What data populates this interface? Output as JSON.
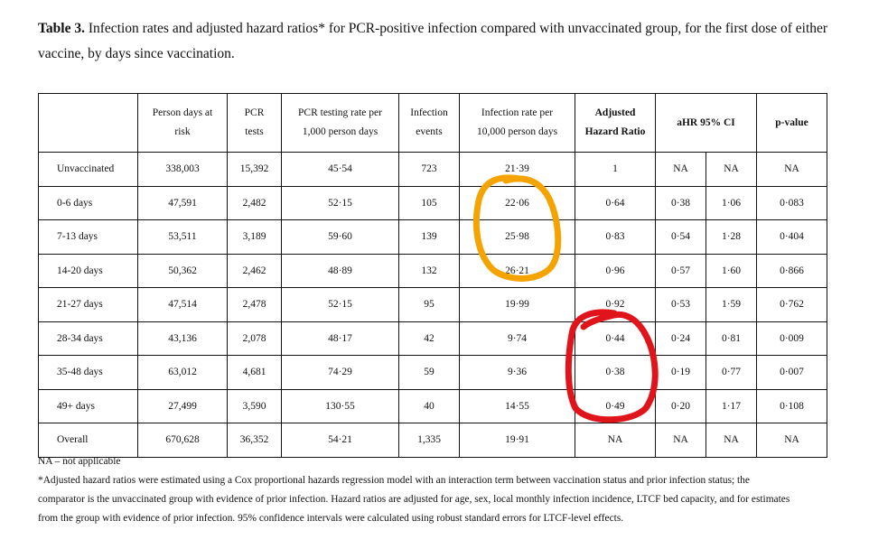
{
  "caption": {
    "label": "Table 3.",
    "text": " Infection rates and adjusted hazard ratios* for PCR-positive infection compared with unvaccinated group, for the first dose of either vaccine, by days since vaccination."
  },
  "table": {
    "headers": {
      "group": "",
      "person_days_l1": "Person days at",
      "person_days_l2": "risk",
      "pcr_tests_l1": "PCR",
      "pcr_tests_l2": "tests",
      "pcr_rate_l1": "PCR testing rate per",
      "pcr_rate_l2": "1,000 person days",
      "events_l1": "Infection",
      "events_l2": "events",
      "inf_rate_l1": "Infection rate per",
      "inf_rate_l2": "10,000 person days",
      "ahr_l1": "Adjusted",
      "ahr_l2": "Hazard Ratio",
      "ci": "aHR 95% CI",
      "pvalue": "p-value"
    },
    "rows": [
      {
        "group": "Unvaccinated",
        "person_days": "338,003",
        "pcr_tests": "15,392",
        "pcr_rate": "45·54",
        "events": "723",
        "inf_rate": "21·39",
        "ahr": "1",
        "ci_low": "NA",
        "ci_high": "NA",
        "p": "NA"
      },
      {
        "group": "0-6 days",
        "person_days": "47,591",
        "pcr_tests": "2,482",
        "pcr_rate": "52·15",
        "events": "105",
        "inf_rate": "22·06",
        "ahr": "0·64",
        "ci_low": "0·38",
        "ci_high": "1·06",
        "p": "0·083"
      },
      {
        "group": "7-13 days",
        "person_days": "53,511",
        "pcr_tests": "3,189",
        "pcr_rate": "59·60",
        "events": "139",
        "inf_rate": "25·98",
        "ahr": "0·83",
        "ci_low": "0·54",
        "ci_high": "1·28",
        "p": "0·404"
      },
      {
        "group": "14-20 days",
        "person_days": "50,362",
        "pcr_tests": "2,462",
        "pcr_rate": "48·89",
        "events": "132",
        "inf_rate": "26·21",
        "ahr": "0·96",
        "ci_low": "0·57",
        "ci_high": "1·60",
        "p": "0·866"
      },
      {
        "group": "21-27 days",
        "person_days": "47,514",
        "pcr_tests": "2,478",
        "pcr_rate": "52·15",
        "events": "95",
        "inf_rate": "19·99",
        "ahr": "0·92",
        "ci_low": "0·53",
        "ci_high": "1·59",
        "p": "0·762"
      },
      {
        "group": "28-34 days",
        "person_days": "43,136",
        "pcr_tests": "2,078",
        "pcr_rate": "48·17",
        "events": "42",
        "inf_rate": "9·74",
        "ahr": "0·44",
        "ci_low": "0·24",
        "ci_high": "0·81",
        "p": "0·009"
      },
      {
        "group": "35-48 days",
        "person_days": "63,012",
        "pcr_tests": "4,681",
        "pcr_rate": "74·29",
        "events": "59",
        "inf_rate": "9·36",
        "ahr": "0·38",
        "ci_low": "0·19",
        "ci_high": "0·77",
        "p": "0·007"
      },
      {
        "group": "49+ days",
        "person_days": "27,499",
        "pcr_tests": "3,590",
        "pcr_rate": "130·55",
        "events": "40",
        "inf_rate": "14·55",
        "ahr": "0·49",
        "ci_low": "0·20",
        "ci_high": "1·17",
        "p": "0·108"
      },
      {
        "group": "Overall",
        "person_days": "670,628",
        "pcr_tests": "36,352",
        "pcr_rate": "54·21",
        "events": "1,335",
        "inf_rate": "19·91",
        "ahr": "NA",
        "ci_low": "NA",
        "ci_high": "NA",
        "p": "NA"
      }
    ]
  },
  "footnotes": {
    "na": "NA – not applicable",
    "line1": "*Adjusted hazard ratios were estimated using a Cox proportional hazards regression model with an interaction term between vaccination status and prior infection status; the",
    "line2": "comparator is the unvaccinated group with evidence of prior infection. Hazard ratios are adjusted for age, sex, local monthly infection incidence, LTCF bed capacity, and for estimates",
    "line3": "from the group with evidence of prior infection. 95% confidence intervals were calculated using robust standard errors for LTCF-level effects."
  },
  "annotations": {
    "orange_circle": {
      "color": "#f5a300",
      "covers": "Infection rate per 10,000 person days, rows 0-6 days to 14-20 days"
    },
    "red_circle": {
      "color": "#e0141b",
      "covers": "Adjusted Hazard Ratio, rows 28-34 days to 49+ days"
    }
  }
}
